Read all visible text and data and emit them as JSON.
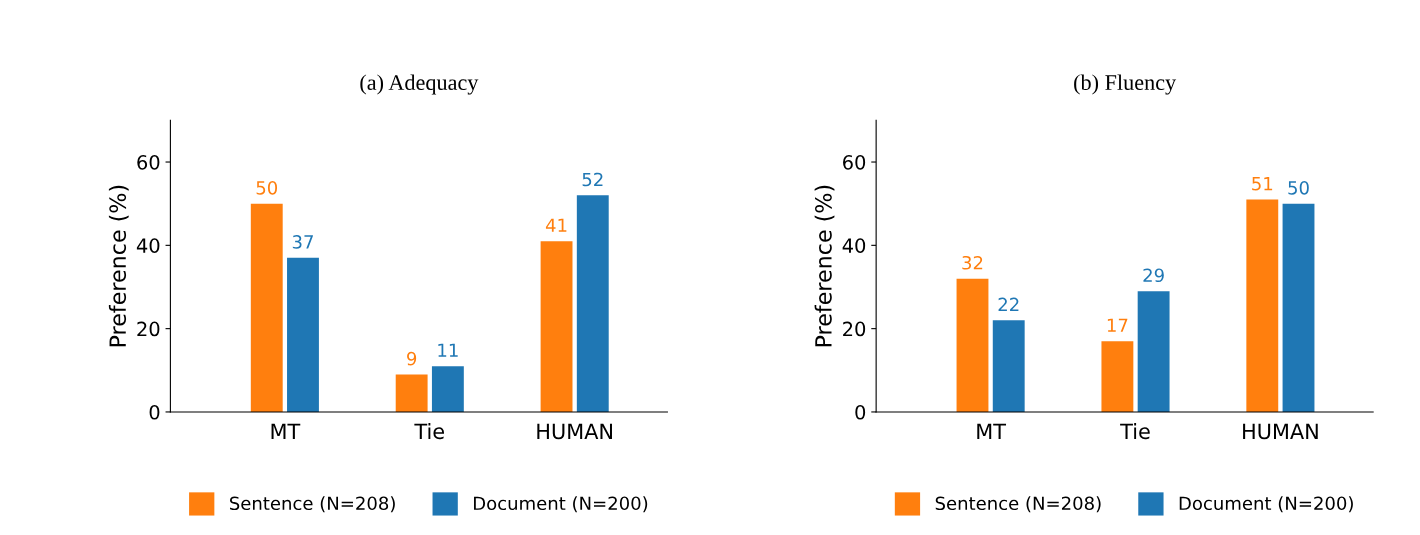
{
  "chart_data": [
    {
      "type": "bar",
      "title": "(a) Adequacy",
      "ylabel": "Preference (%)",
      "categories": [
        "MT",
        "Tie",
        "HUMAN"
      ],
      "ylim": [
        0,
        70
      ],
      "yticks": [
        0,
        20,
        40,
        60
      ],
      "data_labels": true,
      "legend": "bottom",
      "grid": false,
      "series": [
        {
          "name": "Sentence (N=208)",
          "color": "#ff7f0e",
          "values": [
            50,
            9,
            41
          ]
        },
        {
          "name": "Document (N=200)",
          "color": "#1f77b4",
          "values": [
            37,
            11,
            52
          ]
        }
      ]
    },
    {
      "type": "bar",
      "title": "(b) Fluency",
      "ylabel": "Preference (%)",
      "categories": [
        "MT",
        "Tie",
        "HUMAN"
      ],
      "ylim": [
        0,
        70
      ],
      "yticks": [
        0,
        20,
        40,
        60
      ],
      "data_labels": true,
      "legend": "bottom",
      "grid": false,
      "series": [
        {
          "name": "Sentence (N=208)",
          "color": "#ff7f0e",
          "values": [
            32,
            17,
            51
          ]
        },
        {
          "name": "Document (N=200)",
          "color": "#1f77b4",
          "values": [
            22,
            29,
            50
          ]
        }
      ]
    }
  ]
}
